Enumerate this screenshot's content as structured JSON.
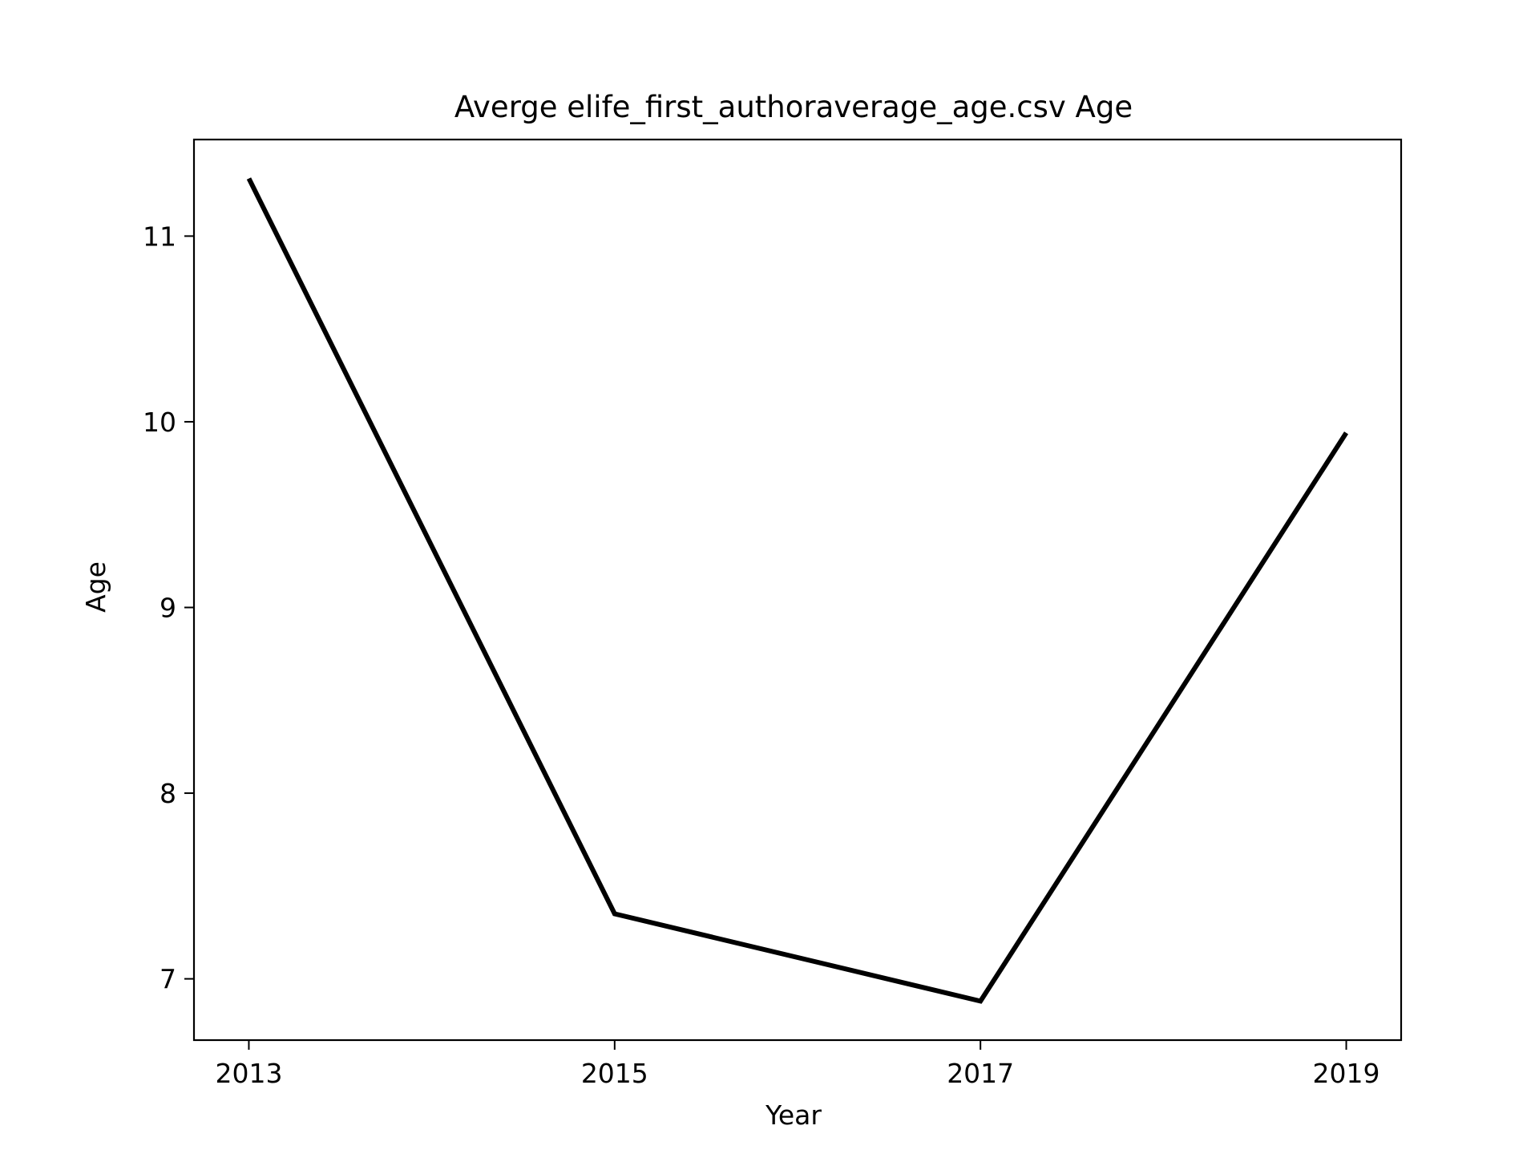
{
  "chart_data": {
    "type": "line",
    "title": "Averge elife_first_authoraverage_age.csv Age",
    "xlabel": "Year",
    "ylabel": "Age",
    "x": [
      2013,
      2015,
      2017,
      2019
    ],
    "series": [
      {
        "values": [
          11.31,
          7.35,
          6.88,
          9.94
        ]
      }
    ],
    "xlim": [
      2012.7,
      2019.3
    ],
    "ylim": [
      6.67,
      11.52
    ],
    "xticks": [
      "2013",
      "2015",
      "2017",
      "2019"
    ],
    "yticks": [
      "7",
      "8",
      "9",
      "10",
      "11"
    ],
    "grid": false,
    "legend": false,
    "colors": {
      "line": "#000000",
      "axes": "#000000",
      "background": "#ffffff"
    }
  }
}
